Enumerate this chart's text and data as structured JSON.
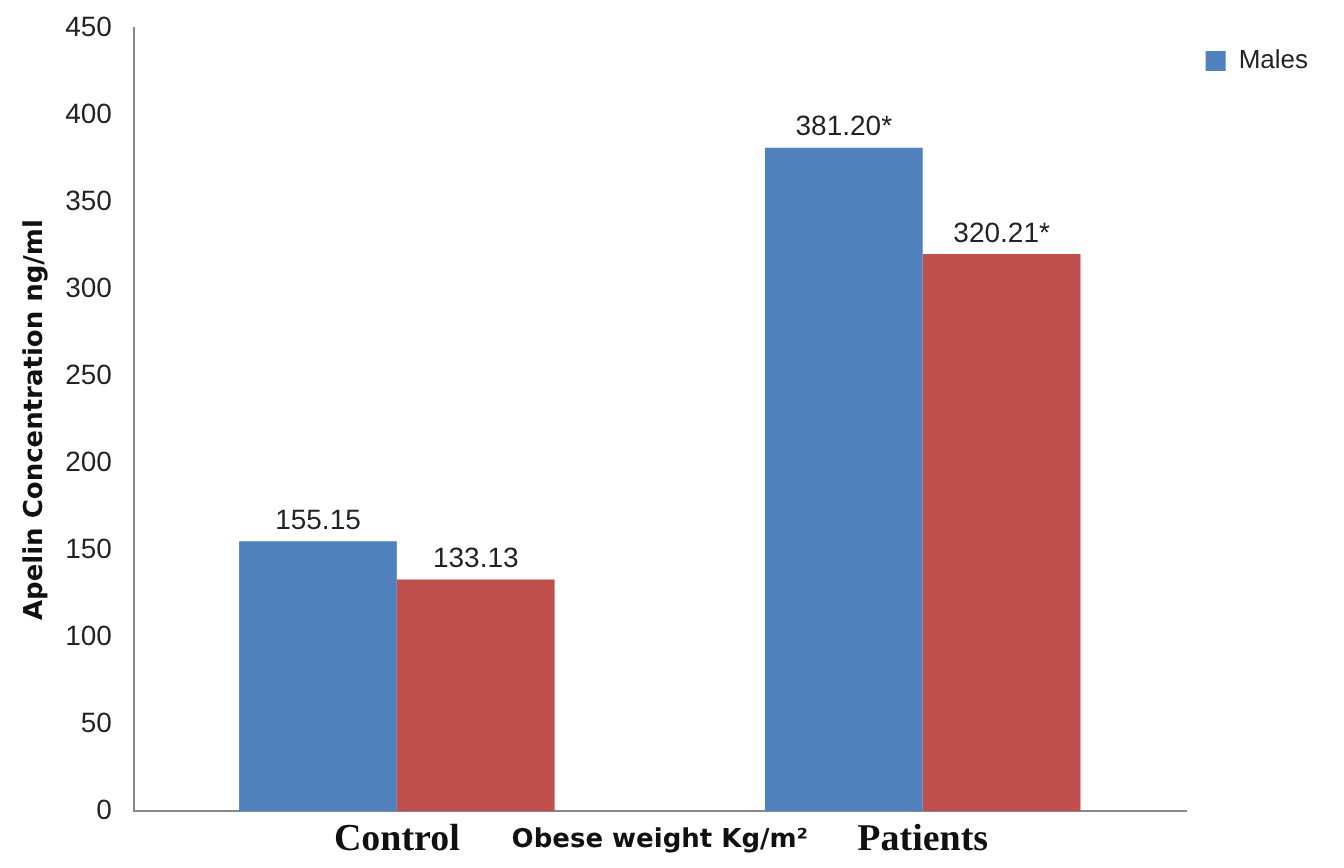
{
  "chart_data": {
    "type": "bar",
    "categories": [
      "Control",
      "Patients"
    ],
    "xlabel": "Obese weight Kg/m²",
    "ylabel": "Apelin Concentration ng/ml",
    "series": [
      {
        "name": "Males",
        "color": "#4f81bd",
        "values": [
          155.15,
          381.2
        ],
        "value_labels": [
          "155.15",
          "381.20*"
        ]
      },
      {
        "color": "#c0504d",
        "values": [
          133.13,
          320.21
        ],
        "value_labels": [
          "133.13",
          "320.21*"
        ]
      }
    ],
    "ylim": [
      0,
      450
    ],
    "yticks": [
      0,
      50,
      100,
      150,
      200,
      250,
      300,
      350,
      400,
      450
    ],
    "grid": false,
    "legend": "top right"
  }
}
